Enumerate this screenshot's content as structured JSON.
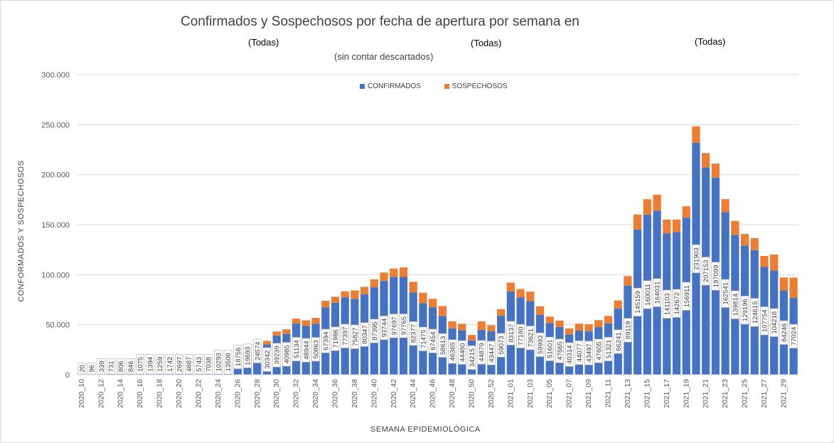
{
  "chart_data": {
    "type": "bar",
    "stacked": true,
    "title": "Confirmados y Sospechosos por fecha de apertura por semana en",
    "filters": [
      "(Todas)",
      "(Todas)",
      "(Todas)"
    ],
    "subtitle": "(sin contar descartados)",
    "xlabel": "SEMANA EPIDEMIOLÓGICA",
    "ylabel": "CONFORMADOS Y SOSPECHOSOS",
    "ylim": [
      0,
      300000
    ],
    "yticks": [
      "0",
      "50.000",
      "100.000",
      "150.000",
      "200.000",
      "250.000",
      "300.000"
    ],
    "grid": true,
    "legend_position": "top-center",
    "colors": {
      "confirmados": "#4472c4",
      "sospechosos": "#ed7d31"
    },
    "categories": [
      "2020_10",
      "2020_11",
      "2020_12",
      "2020_13",
      "2020_14",
      "2020_15",
      "2020_16",
      "2020_17",
      "2020_18",
      "2020_19",
      "2020_20",
      "2020_21",
      "2020_22",
      "2020_23",
      "2020_24",
      "2020_25",
      "2020_26",
      "2020_27",
      "2020_28",
      "2020_29",
      "2020_30",
      "2020_31",
      "2020_32",
      "2020_33",
      "2020_34",
      "2020_35",
      "2020_36",
      "2020_37",
      "2020_38",
      "2020_39",
      "2020_40",
      "2020_41",
      "2020_42",
      "2020_43",
      "2020_44",
      "2020_45",
      "2020_46",
      "2020_47",
      "2020_48",
      "2020_49",
      "2020_50",
      "2020_51",
      "2020_52",
      "2020_53",
      "2021_01",
      "2021_02",
      "2021_03",
      "2021_04",
      "2021_05",
      "2021_06",
      "2021_07",
      "2021_08",
      "2021_09",
      "2021_10",
      "2021_11",
      "2021_12",
      "2021_13",
      "2021_14",
      "2021_15",
      "2021_16",
      "2021_17",
      "2021_18",
      "2021_19",
      "2021_20",
      "2021_21",
      "2021_22",
      "2021_23",
      "2021_24",
      "2021_25",
      "2021_26",
      "2021_27",
      "2021_28",
      "2021_29",
      "2021_30"
    ],
    "series": [
      {
        "name": "CONFIRMADOS",
        "values": [
          20,
          96,
          339,
          731,
          806,
          846,
          1075,
          1394,
          1259,
          1742,
          2697,
          4887,
          5743,
          7038,
          10293,
          13508,
          18756,
          19693,
          24574,
          30342,
          39239,
          40985,
          51134,
          48944,
          50863,
          67394,
          71986,
          77397,
          75827,
          80347,
          87395,
          93744,
          97697,
          97765,
          82377,
          71475,
          67454,
          58613,
          46365,
          44480,
          34215,
          44879,
          43447,
          59073,
          83137,
          77180,
          73621,
          59993,
          51601,
          47665,
          40314,
          44077,
          43497,
          47605,
          51321,
          66241,
          89119,
          145159,
          160011,
          164031,
          141103,
          142672,
          156911,
          231903,
          207153,
          197099,
          162541,
          139814,
          129196,
          124615,
          107754,
          104218,
          84246,
          77024
        ]
      },
      {
        "name": "SOSPECHOSOS",
        "values": [
          0,
          0,
          0,
          0,
          0,
          0,
          0,
          0,
          0,
          0,
          0,
          0,
          0,
          0,
          0,
          500,
          1000,
          1500,
          2500,
          3500,
          4000,
          4500,
          5000,
          5500,
          6000,
          6500,
          6000,
          6000,
          8500,
          7500,
          8000,
          8500,
          8500,
          9500,
          10500,
          10500,
          8500,
          10000,
          7000,
          6500,
          5500,
          8500,
          6000,
          6500,
          9000,
          8500,
          9500,
          8500,
          6500,
          6500,
          6000,
          7000,
          7000,
          7000,
          7500,
          8000,
          9500,
          15000,
          15500,
          16000,
          14000,
          12500,
          11500,
          16500,
          14500,
          14000,
          13000,
          14000,
          11500,
          12000,
          11000,
          16000,
          13000,
          20000
        ]
      }
    ]
  }
}
